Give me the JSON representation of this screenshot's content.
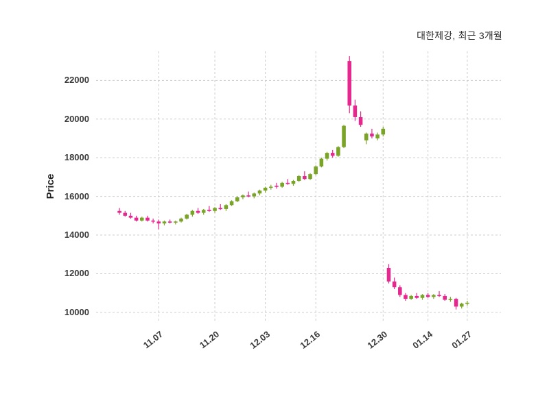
{
  "title": "대한제강, 최근 3개월",
  "chart_data": {
    "type": "candlestick",
    "title": "대한제강, 최근 3개월",
    "ylabel": "Price",
    "ylim": [
      9500,
      23500
    ],
    "ytick_values": [
      10000,
      12000,
      14000,
      16000,
      18000,
      20000,
      22000
    ],
    "ytick_labels": [
      "10000",
      "12000",
      "14000",
      "16000",
      "18000",
      "20000",
      "22000"
    ],
    "xtick_indices": [
      7,
      17,
      26,
      35,
      47,
      55,
      62
    ],
    "xtick_labels": [
      "11.07",
      "11.20",
      "12.03",
      "12.16",
      "12.30",
      "01.14",
      "01.27"
    ],
    "legend": [],
    "grid": true,
    "colors": {
      "up": "#7aa428",
      "down": "#e4288e",
      "grid": "#cccccc",
      "text": "#3a3a3a",
      "background": "#ffffff"
    },
    "ohlc": [
      [
        15250,
        15400,
        15050,
        15150
      ],
      [
        15150,
        15250,
        14950,
        15000
      ],
      [
        15000,
        15150,
        14850,
        14900
      ],
      [
        14900,
        15000,
        14700,
        14750
      ],
      [
        14750,
        14950,
        14700,
        14900
      ],
      [
        14900,
        15000,
        14700,
        14750
      ],
      [
        14750,
        14850,
        14600,
        14700
      ],
      [
        14700,
        14800,
        14300,
        14600
      ],
      [
        14600,
        14750,
        14500,
        14700
      ],
      [
        14700,
        14800,
        14600,
        14650
      ],
      [
        14650,
        14750,
        14550,
        14700
      ],
      [
        14700,
        14900,
        14650,
        14850
      ],
      [
        14850,
        15100,
        14800,
        15050
      ],
      [
        15050,
        15300,
        14950,
        15250
      ],
      [
        15250,
        15400,
        15100,
        15150
      ],
      [
        15150,
        15350,
        15050,
        15300
      ],
      [
        15300,
        15500,
        15200,
        15250
      ],
      [
        15250,
        15450,
        15150,
        15400
      ],
      [
        15400,
        15600,
        15300,
        15350
      ],
      [
        15350,
        15600,
        15250,
        15550
      ],
      [
        15550,
        15800,
        15500,
        15750
      ],
      [
        15750,
        16000,
        15700,
        15950
      ],
      [
        15950,
        16100,
        15850,
        16050
      ],
      [
        16050,
        16250,
        15950,
        16000
      ],
      [
        16000,
        16200,
        15900,
        16150
      ],
      [
        16150,
        16350,
        16050,
        16300
      ],
      [
        16300,
        16500,
        16200,
        16450
      ],
      [
        16450,
        16600,
        16350,
        16500
      ],
      [
        16550,
        16700,
        16400,
        16500
      ],
      [
        16500,
        16750,
        16450,
        16700
      ],
      [
        16700,
        16900,
        16600,
        16650
      ],
      [
        16650,
        16850,
        16550,
        16800
      ],
      [
        16800,
        17100,
        16750,
        17050
      ],
      [
        17050,
        17300,
        16850,
        16900
      ],
      [
        16900,
        17200,
        16850,
        17150
      ],
      [
        17150,
        17600,
        17100,
        17550
      ],
      [
        17550,
        18000,
        17500,
        17950
      ],
      [
        17950,
        18300,
        17850,
        18250
      ],
      [
        18250,
        18400,
        18000,
        18100
      ],
      [
        18100,
        18600,
        18050,
        18550
      ],
      [
        18550,
        19700,
        18500,
        19650
      ],
      [
        23000,
        23250,
        20300,
        20700
      ],
      [
        20700,
        21000,
        19900,
        20100
      ],
      [
        20100,
        20400,
        19600,
        19700
      ],
      [
        18900,
        19300,
        18700,
        19250
      ],
      [
        19250,
        19500,
        19000,
        19100
      ],
      [
        19000,
        19300,
        18900,
        19200
      ],
      [
        19200,
        19600,
        19100,
        19500
      ],
      [
        12300,
        12500,
        11500,
        11600
      ],
      [
        11600,
        11800,
        11200,
        11300
      ],
      [
        11300,
        11400,
        10800,
        10900
      ],
      [
        10900,
        11000,
        10600,
        10700
      ],
      [
        10700,
        10900,
        10650,
        10850
      ],
      [
        10850,
        11000,
        10700,
        10750
      ],
      [
        10750,
        10950,
        10650,
        10900
      ],
      [
        10900,
        11000,
        10750,
        10800
      ],
      [
        10800,
        10950,
        10700,
        10900
      ],
      [
        10900,
        11100,
        10800,
        10850
      ],
      [
        10850,
        10950,
        10600,
        10650
      ],
      [
        10650,
        10800,
        10550,
        10700
      ],
      [
        10700,
        10750,
        10150,
        10300
      ],
      [
        10300,
        10500,
        10200,
        10450
      ],
      [
        10450,
        10600,
        10350,
        10500
      ]
    ]
  }
}
